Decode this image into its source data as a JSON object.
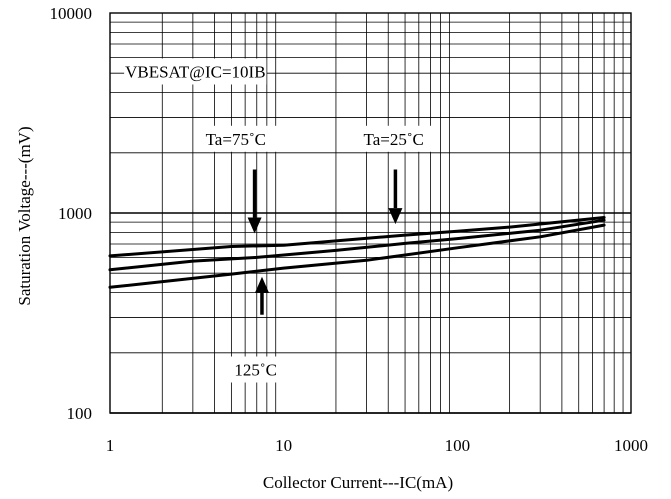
{
  "chart_data": {
    "type": "line",
    "title": "",
    "xlabel": "Collector Current---IC(mA)",
    "ylabel": "Saturation Voltage---(mV)",
    "x_scale": "log",
    "y_scale": "log",
    "xlim": [
      1,
      1000
    ],
    "ylim": [
      100,
      10000
    ],
    "x_ticks": [
      "1",
      "10",
      "100",
      "1000"
    ],
    "y_ticks": [
      "100",
      "1000",
      "10000"
    ],
    "grid": true,
    "colors": {
      "line": "#000000",
      "grid": "#000000",
      "background": "#ffffff"
    },
    "series": [
      {
        "x": [
          1,
          5,
          10,
          20,
          50,
          100,
          200,
          700
        ],
        "y": [
          610,
          680,
          690,
          725,
          775,
          810,
          850,
          950
        ]
      },
      {
        "x": [
          1,
          3,
          7,
          20,
          50,
          100,
          300,
          700
        ],
        "y": [
          520,
          575,
          600,
          650,
          705,
          745,
          820,
          920
        ]
      },
      {
        "x": [
          1,
          5,
          10,
          30,
          100,
          300,
          700
        ],
        "y": [
          425,
          495,
          530,
          580,
          670,
          760,
          870
        ]
      }
    ],
    "annotations": [
      {
        "text": "VBESAT@IC=10IB",
        "x": 3.1,
        "y": 5100
      },
      {
        "text": "Ta=75˚C",
        "x": 5.3,
        "y": 2350
      },
      {
        "text": "Ta=25˚C",
        "x": 43,
        "y": 2350
      },
      {
        "text": "125˚C",
        "x": 6.9,
        "y": 165
      }
    ],
    "arrows": [
      {
        "direction": "down",
        "x": 6.8,
        "y_from": 1650,
        "y_to": 790
      },
      {
        "direction": "down",
        "x": 44,
        "y_from": 1650,
        "y_to": 880
      },
      {
        "direction": "up",
        "x": 7.5,
        "y_from": 310,
        "y_to": 480
      }
    ]
  }
}
